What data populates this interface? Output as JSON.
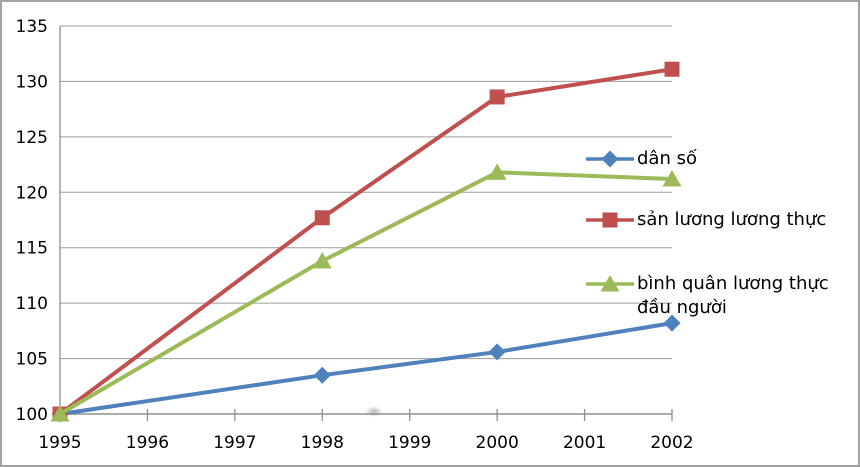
{
  "chart_data": {
    "type": "line",
    "x": [
      1995,
      1998,
      2000,
      2002
    ],
    "x_axis_ticks": [
      1995,
      1996,
      1997,
      1998,
      1999,
      2000,
      2001,
      2002
    ],
    "series": [
      {
        "name": "dân số",
        "marker": "diamond",
        "color": "#4F81BD",
        "values": [
          100,
          103.5,
          105.6,
          108.2
        ]
      },
      {
        "name": "sản lương lương thực",
        "marker": "square",
        "color": "#C0504D",
        "values": [
          100,
          117.7,
          128.6,
          131.1
        ]
      },
      {
        "name": "bình quân lương thực đầu người",
        "marker": "triangle",
        "color": "#9BBB59",
        "values": [
          100,
          113.8,
          121.8,
          121.2
        ]
      }
    ],
    "ylim": [
      100,
      135
    ],
    "y_tick_step": 5,
    "title": "",
    "xlabel": "",
    "ylabel": "",
    "grid": true,
    "legend_position": "inside-right",
    "axis_color": "#8f8f8f",
    "grid_color": "#9c9c9c",
    "text_color": "#000000"
  }
}
